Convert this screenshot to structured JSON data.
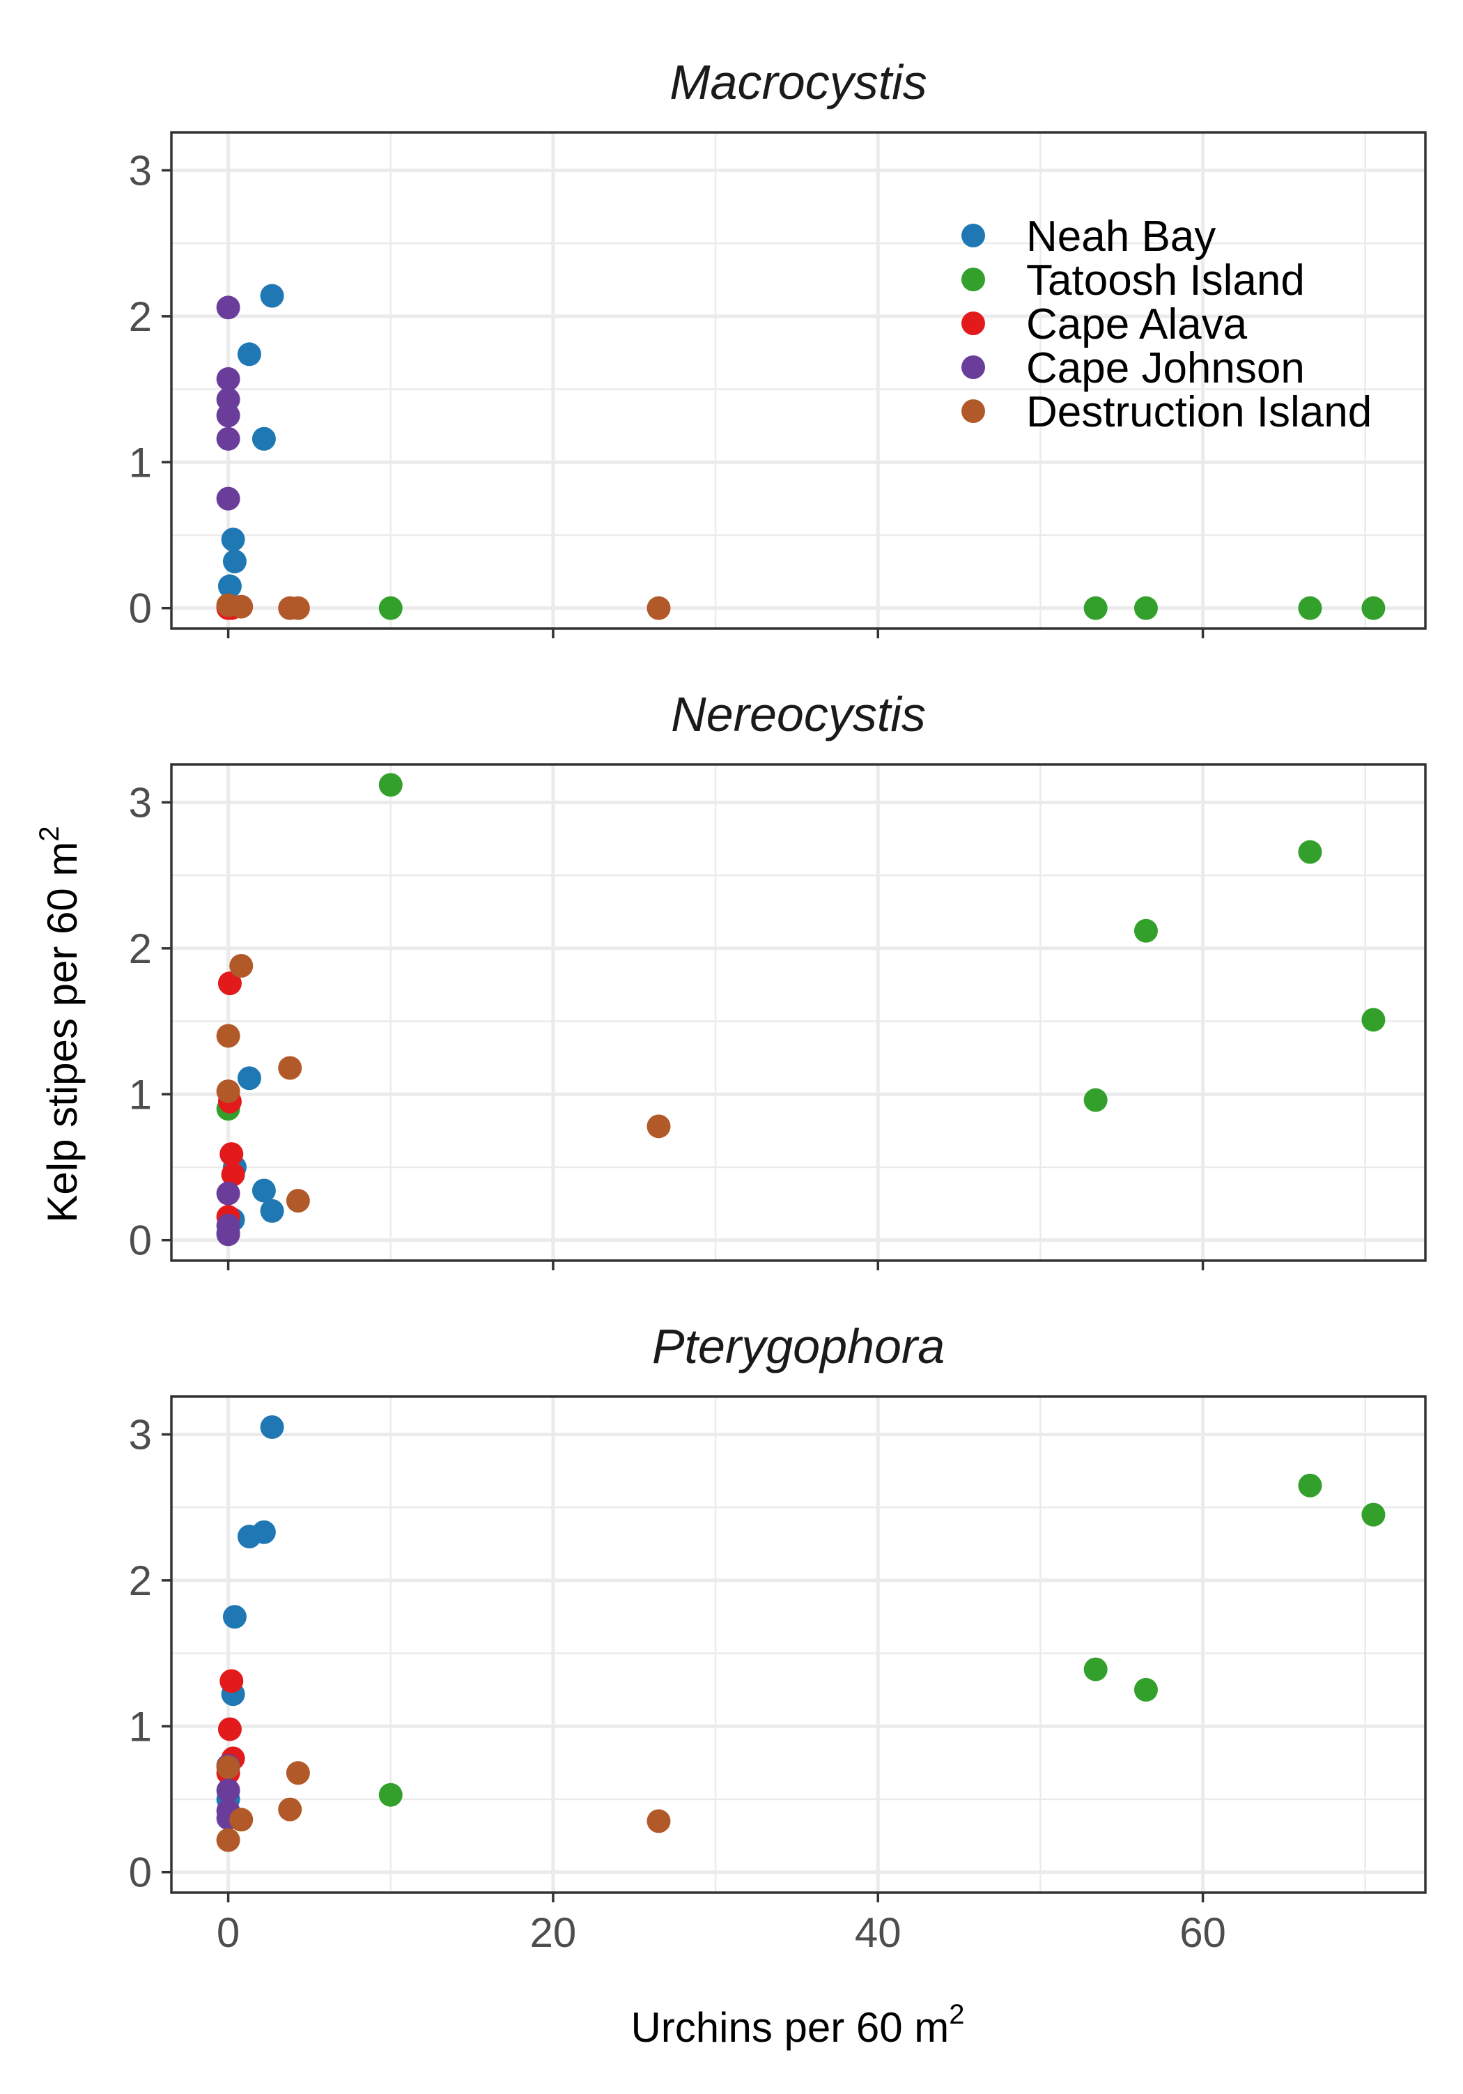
{
  "chart_data": {
    "type": "scatter",
    "facets": [
      "Macrocystis",
      "Nereocystis",
      "Pterygophora"
    ],
    "xlabel": "Urchins per 60 m",
    "xlabel_sup": "2",
    "ylabel": "Kelp stipes per 60 m",
    "ylabel_sup": "2",
    "xlim": [
      -3.5,
      73.7
    ],
    "ylim": [
      -0.14,
      3.26
    ],
    "x_ticks": [
      0,
      20,
      40,
      60
    ],
    "x_tick_labels": [
      "0",
      "20",
      "40",
      "60"
    ],
    "y_ticks": [
      0,
      1,
      2,
      3
    ],
    "y_tick_labels": [
      "0",
      "1",
      "2",
      "3"
    ],
    "grid": true,
    "legend_position": "top-right",
    "legend_facet": "Macrocystis",
    "series": [
      {
        "name": "Neah Bay",
        "color": "#1f78b4",
        "points": {
          "Macrocystis": [
            [
              2.7,
              2.14
            ],
            [
              1.3,
              1.74
            ],
            [
              2.2,
              1.16
            ],
            [
              0.3,
              0.47
            ],
            [
              0.4,
              0.32
            ],
            [
              0.1,
              0.15
            ],
            [
              0.0,
              0.02
            ]
          ],
          "Nereocystis": [
            [
              1.3,
              1.11
            ],
            [
              0.4,
              0.5
            ],
            [
              2.2,
              0.34
            ],
            [
              2.7,
              0.2
            ],
            [
              0.3,
              0.14
            ],
            [
              0.0,
              0.05
            ]
          ],
          "Pterygophora": [
            [
              2.7,
              3.05
            ],
            [
              2.2,
              2.33
            ],
            [
              1.3,
              2.3
            ],
            [
              0.4,
              1.75
            ],
            [
              0.3,
              1.22
            ],
            [
              0.0,
              0.5
            ]
          ]
        }
      },
      {
        "name": "Tatoosh Island",
        "color": "#33a02c",
        "points": {
          "Macrocystis": [
            [
              10.0,
              0.0
            ],
            [
              53.4,
              0.0
            ],
            [
              56.5,
              0.0
            ],
            [
              66.6,
              0.0
            ],
            [
              70.5,
              0.0
            ]
          ],
          "Nereocystis": [
            [
              10.0,
              3.12
            ],
            [
              66.6,
              2.66
            ],
            [
              56.5,
              2.12
            ],
            [
              70.5,
              1.51
            ],
            [
              53.4,
              0.96
            ],
            [
              0.0,
              0.9
            ]
          ],
          "Pterygophora": [
            [
              66.6,
              2.65
            ],
            [
              70.5,
              2.45
            ],
            [
              53.4,
              1.39
            ],
            [
              56.5,
              1.25
            ],
            [
              10.0,
              0.53
            ]
          ]
        }
      },
      {
        "name": "Cape Alava",
        "color": "#e31a1c",
        "points": {
          "Macrocystis": [
            [
              0.0,
              0.0
            ],
            [
              0.1,
              0.01
            ],
            [
              0.2,
              0.0
            ]
          ],
          "Nereocystis": [
            [
              0.1,
              1.76
            ],
            [
              0.1,
              0.95
            ],
            [
              0.2,
              0.59
            ],
            [
              0.3,
              0.45
            ],
            [
              0.0,
              0.16
            ]
          ],
          "Pterygophora": [
            [
              0.2,
              1.31
            ],
            [
              0.1,
              0.98
            ],
            [
              0.3,
              0.78
            ],
            [
              0.0,
              0.68
            ]
          ]
        }
      },
      {
        "name": "Cape Johnson",
        "color": "#6a3d9a",
        "points": {
          "Macrocystis": [
            [
              0.0,
              2.06
            ],
            [
              0.0,
              1.57
            ],
            [
              0.0,
              1.43
            ],
            [
              0.0,
              1.32
            ],
            [
              0.0,
              1.16
            ],
            [
              0.0,
              0.75
            ]
          ],
          "Nereocystis": [
            [
              0.0,
              0.32
            ],
            [
              0.0,
              0.1
            ],
            [
              0.0,
              0.04
            ]
          ],
          "Pterygophora": [
            [
              0.0,
              0.73
            ],
            [
              0.0,
              0.56
            ],
            [
              0.0,
              0.42
            ],
            [
              0.0,
              0.37
            ]
          ]
        }
      },
      {
        "name": "Destruction Island",
        "color": "#b15928",
        "points": {
          "Macrocystis": [
            [
              0.0,
              0.02
            ],
            [
              0.8,
              0.01
            ],
            [
              3.8,
              0.0
            ],
            [
              4.3,
              0.0
            ],
            [
              26.5,
              0.0
            ]
          ],
          "Nereocystis": [
            [
              0.8,
              1.88
            ],
            [
              0.0,
              1.4
            ],
            [
              3.8,
              1.18
            ],
            [
              0.0,
              1.02
            ],
            [
              26.5,
              0.78
            ],
            [
              4.3,
              0.27
            ]
          ],
          "Pterygophora": [
            [
              0.0,
              0.72
            ],
            [
              4.3,
              0.68
            ],
            [
              3.8,
              0.43
            ],
            [
              0.8,
              0.36
            ],
            [
              26.5,
              0.35
            ],
            [
              0.0,
              0.22
            ]
          ]
        }
      }
    ]
  }
}
